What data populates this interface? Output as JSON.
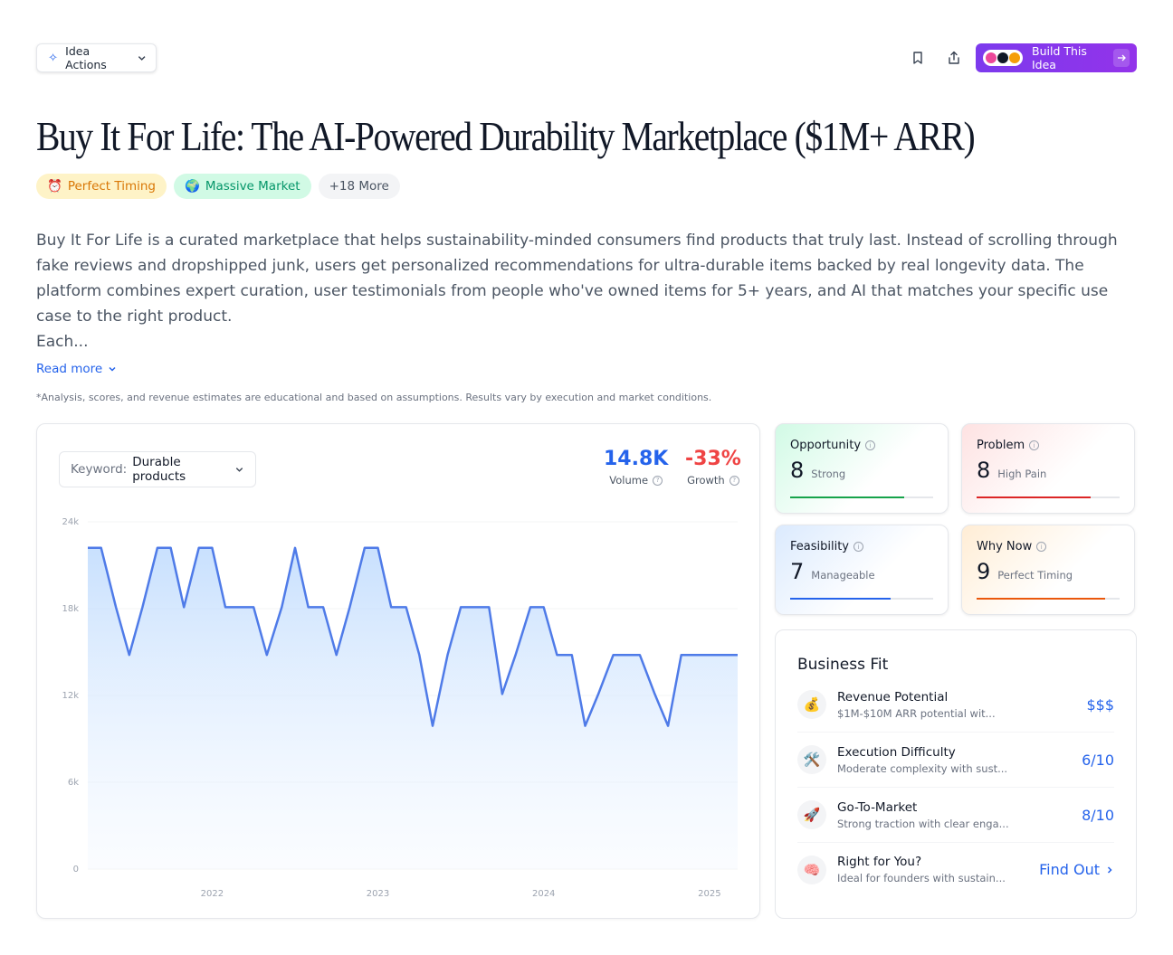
{
  "toolbar": {
    "idea_actions_label": "Idea Actions",
    "build_label": "Build This Idea"
  },
  "title": "Buy It For Life: The AI-Powered Durability Marketplace ($1M+ ARR)",
  "tags": [
    {
      "icon": "⏰",
      "label": "Perfect Timing"
    },
    {
      "icon": "🌍",
      "label": "Massive Market"
    },
    {
      "label": "+18 More"
    }
  ],
  "description": "Buy It For Life is a curated marketplace that helps sustainability-minded consumers find products that truly last. Instead of scrolling through fake reviews and dropshipped junk, users get personalized recommendations for ultra-durable items backed by real longevity data. The platform combines expert curation, user testimonials from people who've owned items for 5+ years, and AI that matches your specific use case to the right product.",
  "description_more": "Each...",
  "read_more": "Read more",
  "disclaimer": "*Analysis, scores, and revenue estimates are educational and based on assumptions. Results vary by execution and market conditions.",
  "keyword": {
    "label": "Keyword:",
    "value": "Durable products"
  },
  "metrics": {
    "volume": {
      "value": "14.8K",
      "label": "Volume"
    },
    "growth": {
      "value": "-33%",
      "label": "Growth"
    }
  },
  "chart_data": {
    "type": "area",
    "color": "#4f7be8",
    "ylim": [
      0,
      24000
    ],
    "yticks": [
      {
        "v": 0,
        "label": "0"
      },
      {
        "v": 6000,
        "label": "6k"
      },
      {
        "v": 12000,
        "label": "12k"
      },
      {
        "v": 18000,
        "label": "18k"
      },
      {
        "v": 24000,
        "label": "24k"
      }
    ],
    "xlim": [
      2021.25,
      2025.17
    ],
    "xticks": [
      {
        "v": 2022,
        "label": "2022"
      },
      {
        "v": 2023,
        "label": "2023"
      },
      {
        "v": 2024,
        "label": "2024"
      },
      {
        "v": 2025,
        "label": "2025"
      }
    ],
    "x": [
      2021.25,
      2021.33,
      2021.42,
      2021.5,
      2021.58,
      2021.67,
      2021.75,
      2021.83,
      2021.92,
      2022.0,
      2022.08,
      2022.17,
      2022.25,
      2022.33,
      2022.42,
      2022.5,
      2022.58,
      2022.67,
      2022.75,
      2022.83,
      2022.92,
      2023.0,
      2023.08,
      2023.17,
      2023.25,
      2023.33,
      2023.42,
      2023.5,
      2023.58,
      2023.67,
      2023.75,
      2023.83,
      2023.92,
      2024.0,
      2024.08,
      2024.17,
      2024.25,
      2024.33,
      2024.42,
      2024.5,
      2024.58,
      2024.67,
      2024.75,
      2024.83,
      2024.92,
      2025.0,
      2025.08,
      2025.17
    ],
    "values": [
      22200,
      22200,
      18100,
      14800,
      18100,
      22200,
      22200,
      18100,
      22200,
      22200,
      18100,
      18100,
      18100,
      14800,
      18100,
      22200,
      18100,
      18100,
      14800,
      18100,
      22200,
      22200,
      18100,
      18100,
      14800,
      9900,
      14800,
      18100,
      18100,
      18100,
      12100,
      14800,
      18100,
      18100,
      14800,
      14800,
      9900,
      12100,
      14800,
      14800,
      14800,
      12100,
      9900,
      14800,
      14800,
      14800,
      14800,
      14800
    ]
  },
  "scores": {
    "opportunity": {
      "label": "Opportunity",
      "value": "8",
      "desc": "Strong",
      "level": 0.8,
      "color": "#16a34a"
    },
    "problem": {
      "label": "Problem",
      "value": "8",
      "desc": "High Pain",
      "level": 0.8,
      "color": "#dc2626"
    },
    "feasibility": {
      "label": "Feasibility",
      "value": "7",
      "desc": "Manageable",
      "level": 0.7,
      "color": "#2563eb"
    },
    "why_now": {
      "label": "Why Now",
      "value": "9",
      "desc": "Perfect Timing",
      "level": 0.9,
      "color": "#ea580c"
    }
  },
  "business_fit": {
    "title": "Business Fit",
    "rows": [
      {
        "icon": "💰",
        "title": "Revenue Potential",
        "desc": "$1M-$10M ARR potential wit...",
        "value": "$$$"
      },
      {
        "icon": "🛠️",
        "title": "Execution Difficulty",
        "desc": "Moderate complexity with sust...",
        "value": "6/10"
      },
      {
        "icon": "🚀",
        "title": "Go-To-Market",
        "desc": "Strong traction with clear enga...",
        "value": "8/10"
      },
      {
        "icon": "🧠",
        "title": "Right for You?",
        "desc": "Ideal for founders with sustain...",
        "value": "Find Out"
      }
    ]
  }
}
